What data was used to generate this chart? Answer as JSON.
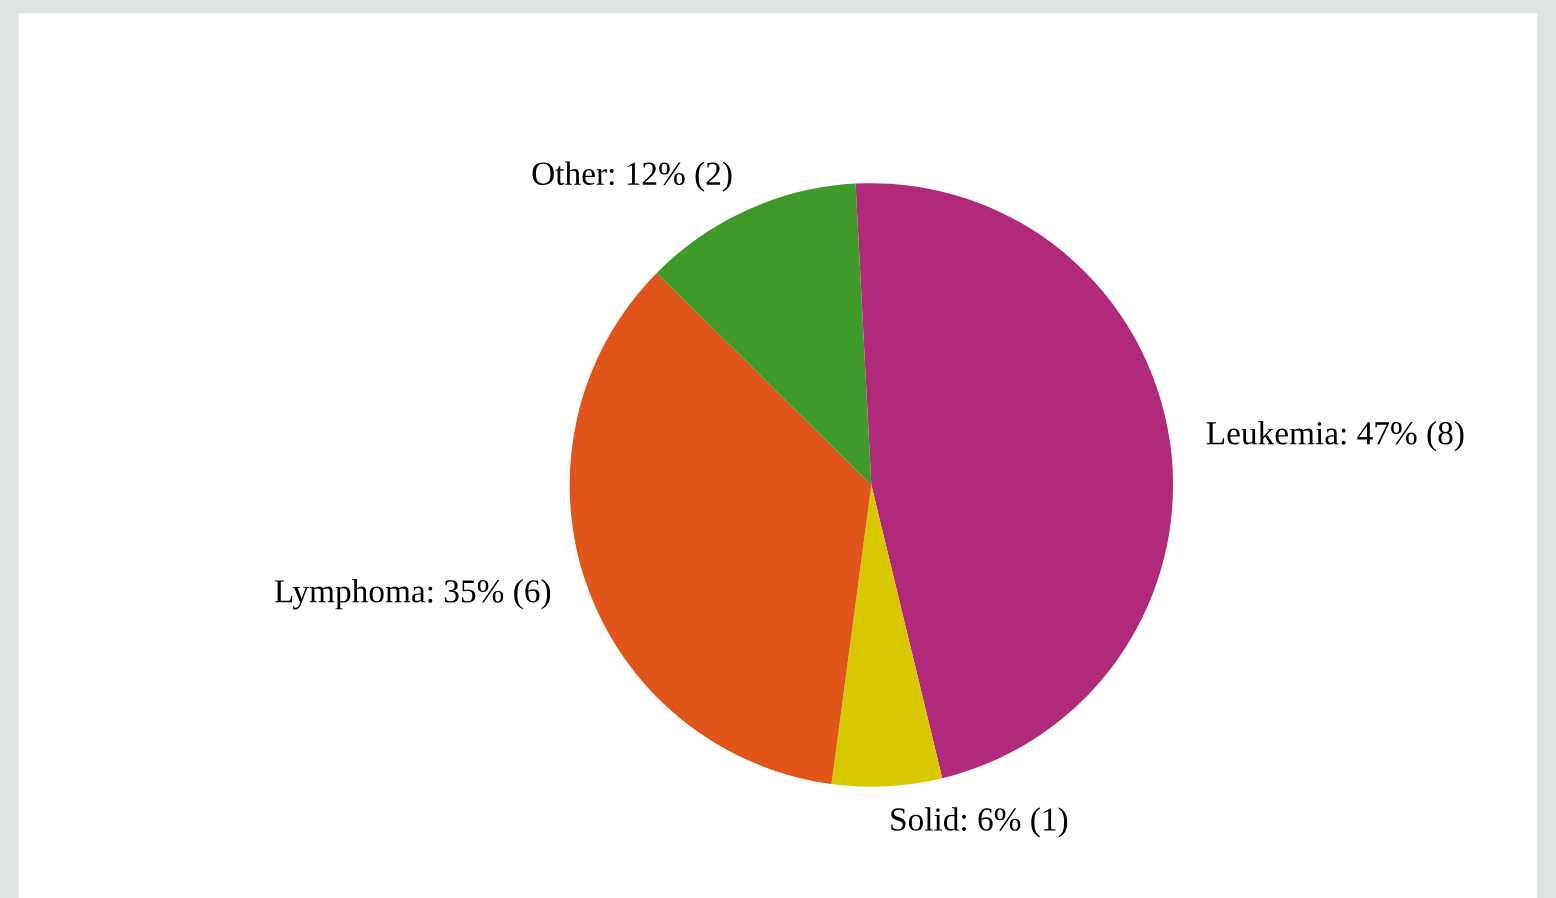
{
  "chart_data": {
    "type": "pie",
    "categories": [
      "Leukemia",
      "Solid",
      "Lymphoma",
      "Other"
    ],
    "values": [
      8,
      1,
      6,
      2
    ],
    "value_labels": [
      "47% (8)",
      "6% (1)",
      "35% (6)",
      "12% (2)"
    ],
    "colors": [
      "#b0297a",
      "#d8c800",
      "#e0561a",
      "#3f9a2a"
    ]
  }
}
